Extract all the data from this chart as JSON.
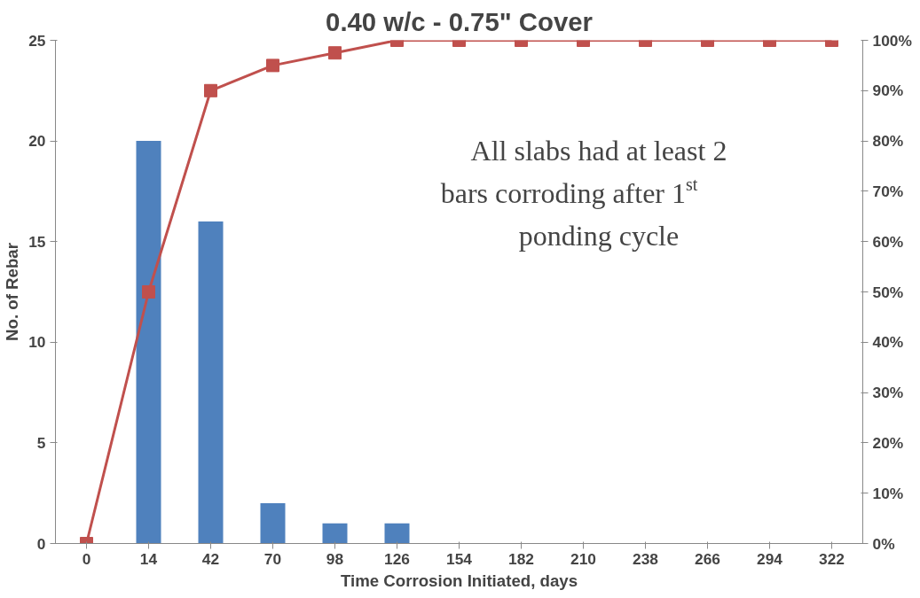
{
  "chart_data": {
    "type": "bar",
    "title": "0.40 w/c - 0.75\" Cover",
    "xlabel": "Time Corrosion Initiated, days",
    "ylabel": "No. of Rebar",
    "categories": [
      "0",
      "14",
      "42",
      "70",
      "98",
      "126",
      "154",
      "182",
      "210",
      "238",
      "266",
      "294",
      "322"
    ],
    "series": [
      {
        "color": "#4f81bd",
        "values": [
          0,
          20,
          16,
          2,
          1,
          1,
          0,
          0,
          0,
          0,
          0,
          0,
          0
        ]
      },
      {
        "type": "line",
        "axis": "y2",
        "color": "#c0504d",
        "marker": "square",
        "values": [
          0,
          50,
          90,
          95,
          97.5,
          100,
          100,
          100,
          100,
          100,
          100,
          100,
          100
        ]
      }
    ],
    "ylim": [
      0,
      25
    ],
    "yticks": [
      0,
      5,
      10,
      15,
      20,
      25
    ],
    "y2lim": [
      0,
      100
    ],
    "y2ticks": [
      {
        "value": 0,
        "label": "0%"
      },
      {
        "value": 10,
        "label": "10%"
      },
      {
        "value": 20,
        "label": "20%"
      },
      {
        "value": 30,
        "label": "30%"
      },
      {
        "value": 40,
        "label": "40%"
      },
      {
        "value": 50,
        "label": "50%"
      },
      {
        "value": 60,
        "label": "60%"
      },
      {
        "value": 70,
        "label": "70%"
      },
      {
        "value": 80,
        "label": "80%"
      },
      {
        "value": 90,
        "label": "90%"
      },
      {
        "value": 100,
        "label": "100%"
      }
    ],
    "annotations": [
      "All slabs had at least 2 bars corroding after 1$^{st}$ ponding cycle"
    ],
    "grid": false
  }
}
